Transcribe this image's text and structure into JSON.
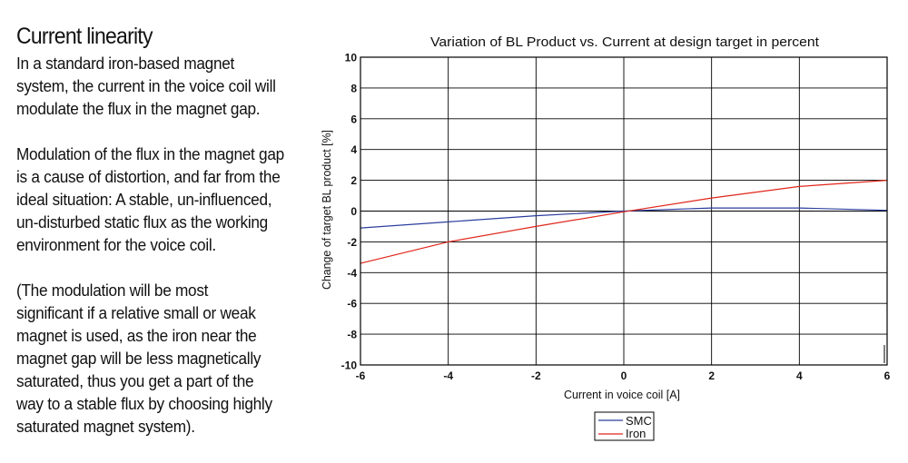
{
  "article": {
    "heading": "Current linearity",
    "paragraphs": [
      "In a standard iron-based magnet\nsystem, the current in the voice coil will\nmodulate the flux in the magnet gap.",
      "Modulation of the flux in the magnet gap\nis a cause of distortion, and far from the\nideal situation: A stable, un-influenced,\nun-disturbed static flux as the working\nenvironment for the voice coil.",
      " (The modulation will be most\nsignificant if a relative small or weak\nmagnet is used, as the iron near the\nmagnet gap will be less magnetically\nsaturated, thus you get a part of the\nway to a stable flux by choosing highly\nsaturated magnet system)."
    ]
  },
  "chart_data": {
    "type": "line",
    "title": "Variation of BL Product vs. Current at design target in percent",
    "xlabel": "Current in voice coil [A]",
    "ylabel": "Change of target BL product [%]",
    "xlim": [
      -6,
      6
    ],
    "ylim": [
      -10,
      10
    ],
    "xticks": [
      -6,
      -4,
      -2,
      0,
      2,
      4,
      6
    ],
    "yticks": [
      -10,
      -8,
      -6,
      -4,
      -2,
      0,
      2,
      4,
      6,
      8,
      10
    ],
    "grid": true,
    "legend_position": "bottom-center",
    "series": [
      {
        "name": "SMC",
        "color": "#2b3f9e",
        "x": [
          -6,
          -4,
          -2,
          0,
          2,
          4,
          6
        ],
        "y": [
          -1.1,
          -0.7,
          -0.3,
          0,
          0.2,
          0.2,
          0.05
        ]
      },
      {
        "name": "Iron",
        "color": "#e0261a",
        "x": [
          -6,
          -4,
          -2,
          0,
          2,
          4,
          6
        ],
        "y": [
          -3.4,
          -2.0,
          -1.0,
          -0.05,
          0.85,
          1.6,
          2.0
        ]
      }
    ]
  }
}
